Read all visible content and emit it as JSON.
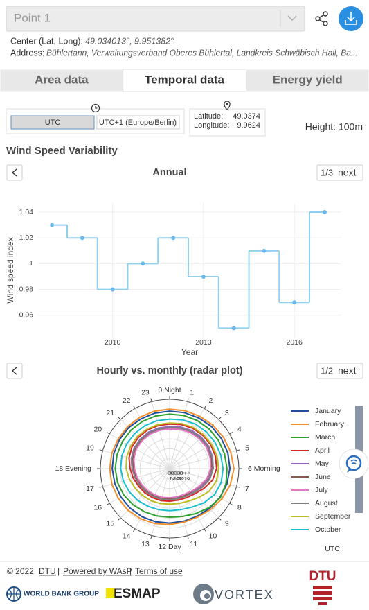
{
  "header": {
    "point": "Point 1",
    "center_label": "Center (Lat, Long):",
    "center_value": "49.034013°, 9.951382°",
    "address_label": "Address:",
    "address_value": "Bühlertann, Verwaltungsverband Oberes Bühlertal, Landkreis Schwäbisch Hall, Ba..."
  },
  "tabs": [
    "Area data",
    "Temporal data",
    "Energy yield"
  ],
  "active_tab": 1,
  "timezone": [
    "UTC",
    "UTC+1 (Europe/Berlin)"
  ],
  "location": {
    "lat_label": "Latitude:",
    "lat": "49.0374",
    "lon_label": "Longitude:",
    "lon": "9.9624"
  },
  "height": "Height: 100m",
  "section_title": "Wind Speed Variability",
  "chart_data": [
    {
      "type": "step",
      "title": "Annual",
      "page": "1/3",
      "next": "next",
      "x_label": "Year",
      "y_label": "Wind speed index",
      "x": [
        2008,
        2009,
        2010,
        2011,
        2012,
        2013,
        2014,
        2015,
        2016,
        2017
      ],
      "series": [
        {
          "name": "Wind speed index",
          "color": "#8fd0ef",
          "values": [
            1.03,
            1.02,
            0.98,
            1,
            1.02,
            0.99,
            0.95,
            1.01,
            0.97,
            1.04
          ]
        }
      ],
      "marker_color": "#6ab9ea",
      "xlim": [
        2007.54,
        2017.55
      ],
      "xticks": [
        2010,
        2013,
        2016
      ],
      "ylim": [
        0.94,
        1.047
      ],
      "yticks": [
        0.96,
        0.98,
        1,
        1.02,
        1.04
      ],
      "grid": true
    },
    {
      "type": "radar",
      "title": "Hourly vs. monthly (radar plot)",
      "page": "1/2",
      "next": "next",
      "categories": [
        "0 Night",
        "1",
        "2",
        "3",
        "4",
        "5",
        "6 Morning",
        "7",
        "8",
        "9",
        "10",
        "11",
        "12 Day",
        "13",
        "14",
        "15",
        "16",
        "17",
        "18 Evening",
        "19",
        "20",
        "21",
        "22",
        "23"
      ],
      "rlim": [
        0,
        1.4
      ],
      "rticks": [
        0,
        0.2,
        0.4,
        0.6,
        0.8,
        1,
        1.2
      ],
      "legend": "right",
      "annotation": "UTC",
      "series": [
        {
          "name": "January",
          "color": "#1f4e9c",
          "values": [
            1.16,
            1.17,
            1.18,
            1.2,
            1.21,
            1.22,
            1.22,
            1.2,
            1.17,
            1.14,
            1.11,
            1.1,
            1.1,
            1.11,
            1.12,
            1.13,
            1.14,
            1.15,
            1.16,
            1.17,
            1.17,
            1.17,
            1.16,
            1.16
          ]
        },
        {
          "name": "February",
          "color": "#f28e2b",
          "values": [
            1.2,
            1.21,
            1.22,
            1.24,
            1.26,
            1.28,
            1.3,
            1.27,
            1.22,
            1.17,
            1.13,
            1.12,
            1.13,
            1.15,
            1.17,
            1.19,
            1.2,
            1.21,
            1.21,
            1.21,
            1.2,
            1.2,
            1.2,
            1.2
          ]
        },
        {
          "name": "March",
          "color": "#2ca02c",
          "values": [
            1.1,
            1.11,
            1.12,
            1.13,
            1.14,
            1.15,
            1.16,
            1.18,
            1.18,
            1.12,
            1.05,
            1,
            0.98,
            0.99,
            1.01,
            1.04,
            1.07,
            1.09,
            1.1,
            1.1,
            1.1,
            1.1,
            1.1,
            1.1
          ]
        },
        {
          "name": "April",
          "color": "#d62728",
          "values": [
            0.9,
            0.92,
            0.94,
            0.95,
            0.96,
            0.96,
            0.95,
            0.9,
            0.8,
            0.72,
            0.68,
            0.66,
            0.66,
            0.67,
            0.68,
            0.7,
            0.72,
            0.76,
            0.8,
            0.85,
            0.88,
            0.89,
            0.9,
            0.9
          ]
        },
        {
          "name": "May",
          "color": "#9467bd",
          "values": [
            0.85,
            0.87,
            0.89,
            0.9,
            0.91,
            0.9,
            0.88,
            0.82,
            0.74,
            0.68,
            0.64,
            0.63,
            0.63,
            0.64,
            0.65,
            0.67,
            0.69,
            0.72,
            0.76,
            0.8,
            0.83,
            0.84,
            0.85,
            0.85
          ]
        },
        {
          "name": "June",
          "color": "#8c564b",
          "values": [
            0.82,
            0.84,
            0.86,
            0.87,
            0.88,
            0.87,
            0.85,
            0.79,
            0.71,
            0.65,
            0.62,
            0.61,
            0.61,
            0.62,
            0.63,
            0.65,
            0.67,
            0.7,
            0.73,
            0.77,
            0.8,
            0.81,
            0.82,
            0.82
          ]
        },
        {
          "name": "July",
          "color": "#e377c2",
          "values": [
            0.8,
            0.82,
            0.84,
            0.85,
            0.86,
            0.85,
            0.83,
            0.78,
            0.7,
            0.64,
            0.6,
            0.59,
            0.59,
            0.6,
            0.61,
            0.63,
            0.65,
            0.68,
            0.71,
            0.75,
            0.78,
            0.79,
            0.8,
            0.8
          ]
        },
        {
          "name": "August",
          "color": "#7f7f7f",
          "values": [
            0.83,
            0.85,
            0.87,
            0.88,
            0.89,
            0.89,
            0.88,
            0.84,
            0.76,
            0.69,
            0.65,
            0.63,
            0.63,
            0.64,
            0.65,
            0.67,
            0.69,
            0.72,
            0.76,
            0.8,
            0.82,
            0.83,
            0.83,
            0.83
          ]
        },
        {
          "name": "September",
          "color": "#bcbd22",
          "values": [
            0.92,
            0.94,
            0.96,
            0.97,
            0.98,
            0.99,
            0.99,
            0.98,
            0.92,
            0.83,
            0.76,
            0.73,
            0.72,
            0.73,
            0.75,
            0.77,
            0.8,
            0.84,
            0.88,
            0.9,
            0.91,
            0.92,
            0.92,
            0.92
          ]
        },
        {
          "name": "October",
          "color": "#17becf",
          "values": [
            1,
            1.02,
            1.04,
            1.05,
            1.06,
            1.07,
            1.08,
            1.08,
            1.05,
            0.98,
            0.9,
            0.86,
            0.85,
            0.86,
            0.88,
            0.91,
            0.94,
            0.97,
            0.99,
            1,
            1,
            1,
            1,
            1
          ]
        }
      ]
    }
  ],
  "footer": {
    "copyright": "© 2022",
    "separator": "|",
    "links": [
      "DTU",
      "Powered by WAsP",
      "Terms of use"
    ],
    "logos": [
      "WORLD BANK GROUP",
      "ESMAP",
      "VORTEX",
      "DTU"
    ]
  }
}
